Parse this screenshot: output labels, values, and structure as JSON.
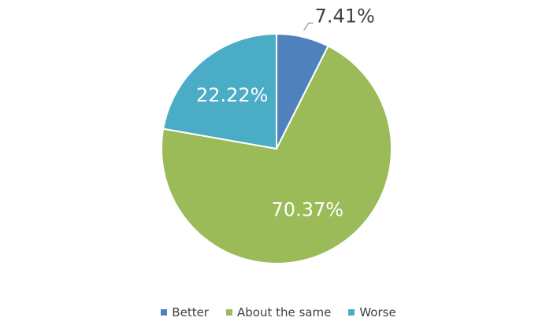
{
  "chart_data": {
    "type": "pie",
    "categories": [
      "Better",
      "About the same",
      "Worse"
    ],
    "values": [
      7.41,
      70.37,
      22.22
    ],
    "value_labels": [
      "7.41%",
      "70.37%",
      "22.22%"
    ],
    "colors": [
      "#4f81bd",
      "#9bbb59",
      "#4bacc6"
    ],
    "legend": "bottom"
  }
}
